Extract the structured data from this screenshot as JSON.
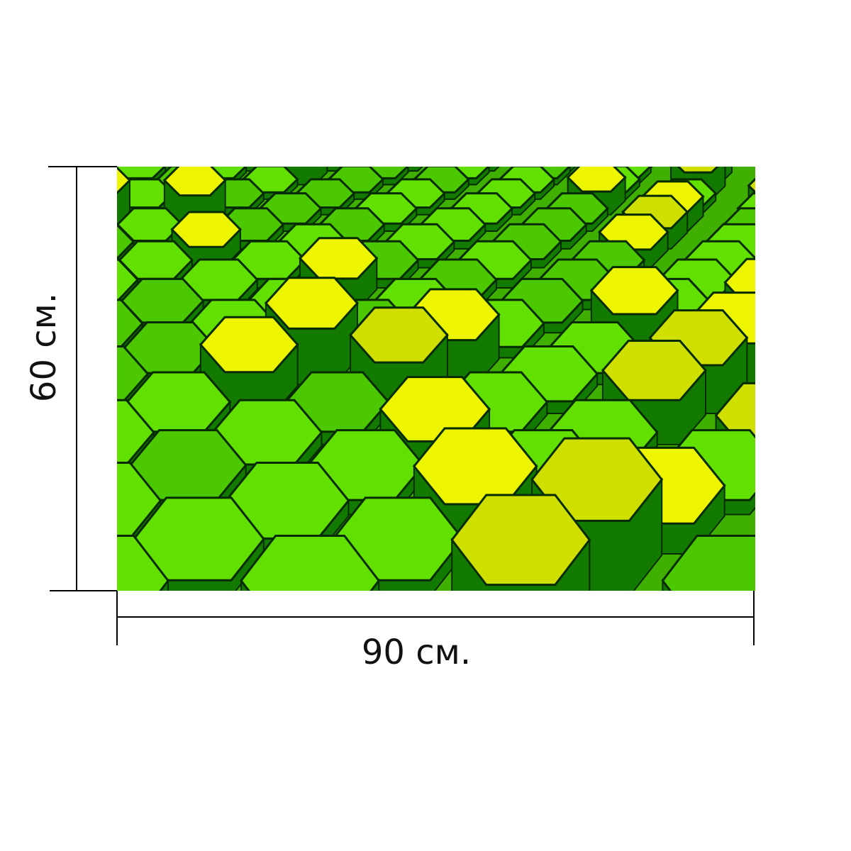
{
  "dimensions": {
    "width_label": "90 см.",
    "height_label": "60 см."
  }
}
